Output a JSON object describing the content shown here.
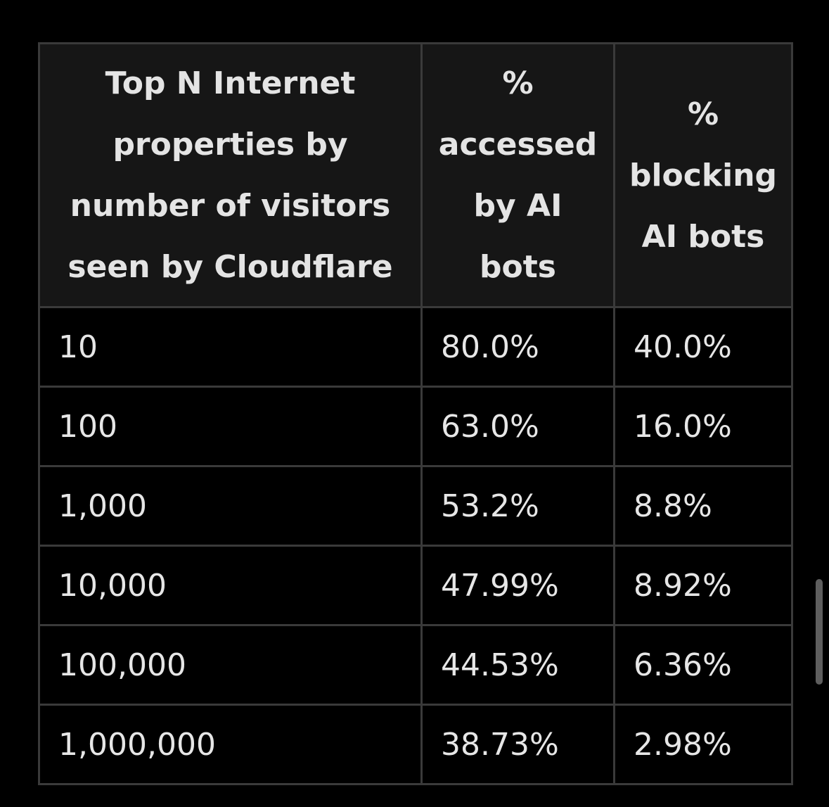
{
  "table": {
    "headers": [
      {
        "lines": [
          "Top N Internet",
          "properties by",
          "number of visitors",
          "seen by Cloudflare"
        ]
      },
      {
        "lines": [
          "%",
          "accessed",
          "by AI",
          "bots"
        ]
      },
      {
        "lines": [
          "%",
          "blocking",
          "AI bots"
        ]
      }
    ],
    "rows": [
      [
        "10",
        "80.0%",
        "40.0%"
      ],
      [
        "100",
        "63.0%",
        "16.0%"
      ],
      [
        "1,000",
        "53.2%",
        "8.8%"
      ],
      [
        "10,000",
        "47.99%",
        "8.92%"
      ],
      [
        "100,000",
        "44.53%",
        "6.36%"
      ],
      [
        "1,000,000",
        "38.73%",
        "2.98%"
      ]
    ]
  },
  "colors": {
    "background": "#000000",
    "header_background": "#161616",
    "border": "#3a3a3a",
    "text": "#e6e6e6",
    "scrollbar": "#5e5e5e"
  }
}
